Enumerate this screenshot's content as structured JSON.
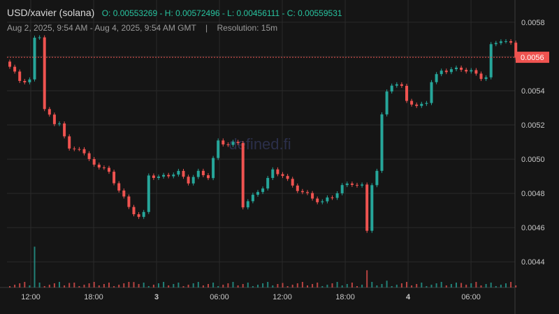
{
  "header": {
    "title": "USD/xavier (solana)",
    "ohlc": "O: 0.00553269 - H: 0.00572496 - L: 0.00456111 - C: 0.00559531",
    "date_range": "Aug 2, 2025, 9:54 AM - Aug 4, 2025, 9:54 AM GMT",
    "separator": "|",
    "resolution": "Resolution: 15m"
  },
  "watermark": "defined.fi",
  "colors": {
    "up": "#26a69a",
    "down": "#ef5350",
    "background": "#151515",
    "grid": "#2a2a2a",
    "text": "#c8c8c8",
    "price_tag": "#ef5350"
  },
  "chart_data": {
    "type": "candlestick",
    "series_name": "USD/xavier (solana)",
    "x_tick_labels": [
      "12:00",
      "18:00",
      "3",
      "06:00",
      "12:00",
      "18:00",
      "4",
      "06:00"
    ],
    "y_tick_labels": [
      "0.0044",
      "0.0046",
      "0.0048",
      "0.0050",
      "0.0052",
      "0.0054",
      "0.0056",
      "0.0058"
    ],
    "ylim": [
      0.00425,
      0.00593
    ],
    "current_price_label": "0.0056",
    "current_price": 0.00559531,
    "grid": true,
    "price_path": [
      [
        0,
        0.00554
      ],
      [
        2,
        0.00546
      ],
      [
        4,
        0.00546
      ],
      [
        5,
        0.0057
      ],
      [
        6,
        0.00572
      ],
      [
        7,
        0.0053
      ],
      [
        9,
        0.0052
      ],
      [
        10,
        0.00522
      ],
      [
        12,
        0.00505
      ],
      [
        14,
        0.00507
      ],
      [
        16,
        0.00499
      ],
      [
        18,
        0.00496
      ],
      [
        20,
        0.00492
      ],
      [
        22,
        0.00482
      ],
      [
        24,
        0.00472
      ],
      [
        26,
        0.00466
      ],
      [
        27,
        0.00468
      ],
      [
        28,
        0.00491
      ],
      [
        30,
        0.00489
      ],
      [
        32,
        0.00491
      ],
      [
        34,
        0.00492
      ],
      [
        36,
        0.00487
      ],
      [
        38,
        0.00492
      ],
      [
        40,
        0.0049
      ],
      [
        42,
        0.0051
      ],
      [
        44,
        0.00509
      ],
      [
        46,
        0.00509
      ],
      [
        47,
        0.00473
      ],
      [
        49,
        0.00478
      ],
      [
        51,
        0.00484
      ],
      [
        53,
        0.00493
      ],
      [
        55,
        0.00491
      ],
      [
        57,
        0.00484
      ],
      [
        59,
        0.00481
      ],
      [
        61,
        0.00477
      ],
      [
        63,
        0.00475
      ],
      [
        65,
        0.00478
      ],
      [
        67,
        0.00484
      ],
      [
        69,
        0.00486
      ],
      [
        71,
        0.00484
      ],
      [
        72,
        0.00458
      ],
      [
        73,
        0.00486
      ],
      [
        74,
        0.00493
      ],
      [
        75,
        0.00525
      ],
      [
        76,
        0.0054
      ],
      [
        77,
        0.00544
      ],
      [
        79,
        0.00542
      ],
      [
        80,
        0.00535
      ],
      [
        82,
        0.0053
      ],
      [
        84,
        0.00534
      ],
      [
        85,
        0.00545
      ],
      [
        87,
        0.00552
      ],
      [
        89,
        0.00552
      ],
      [
        91,
        0.00553
      ],
      [
        93,
        0.00551
      ],
      [
        95,
        0.00548
      ],
      [
        96,
        0.00548
      ],
      [
        97,
        0.00566
      ],
      [
        99,
        0.0057
      ],
      [
        101,
        0.00567
      ],
      [
        102,
        0.0056
      ]
    ],
    "volume_spikes": [
      [
        5,
        0.9
      ],
      [
        12,
        0.1
      ],
      [
        25,
        0.12
      ],
      [
        55,
        0.1
      ],
      [
        72,
        0.38
      ],
      [
        76,
        0.15
      ],
      [
        91,
        0.1
      ]
    ]
  }
}
